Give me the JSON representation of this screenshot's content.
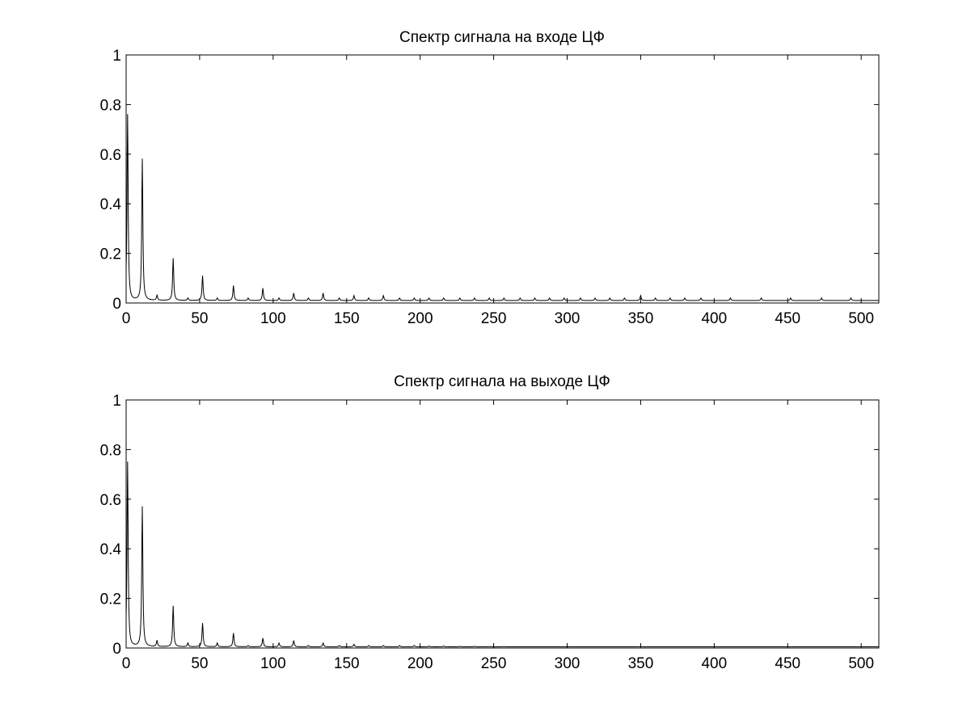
{
  "chart_data": [
    {
      "type": "line",
      "title": "Спектр сигнала на входе ЦФ",
      "xlabel": "",
      "ylabel": "",
      "xlim": [
        0,
        512
      ],
      "ylim": [
        0,
        1
      ],
      "xticks": [
        0,
        50,
        100,
        150,
        200,
        250,
        300,
        350,
        400,
        450,
        500
      ],
      "yticks": [
        0,
        0.2,
        0.4,
        0.6,
        0.8,
        1
      ],
      "ytick_labels": [
        "0",
        "0.2",
        "0.4",
        "0.6",
        "0.8",
        "1"
      ],
      "grid": false,
      "color": "#000000",
      "baseline": 0.01,
      "peaks": [
        {
          "x": 1,
          "y": 0.76
        },
        {
          "x": 11,
          "y": 0.58
        },
        {
          "x": 21,
          "y": 0.03
        },
        {
          "x": 32,
          "y": 0.18
        },
        {
          "x": 42,
          "y": 0.02
        },
        {
          "x": 52,
          "y": 0.11
        },
        {
          "x": 62,
          "y": 0.02
        },
        {
          "x": 73,
          "y": 0.07
        },
        {
          "x": 83,
          "y": 0.02
        },
        {
          "x": 93,
          "y": 0.06
        },
        {
          "x": 104,
          "y": 0.02
        },
        {
          "x": 114,
          "y": 0.04
        },
        {
          "x": 124,
          "y": 0.02
        },
        {
          "x": 134,
          "y": 0.04
        },
        {
          "x": 145,
          "y": 0.02
        },
        {
          "x": 155,
          "y": 0.03
        },
        {
          "x": 165,
          "y": 0.02
        },
        {
          "x": 175,
          "y": 0.03
        },
        {
          "x": 186,
          "y": 0.02
        },
        {
          "x": 196,
          "y": 0.02
        },
        {
          "x": 206,
          "y": 0.02
        },
        {
          "x": 216,
          "y": 0.02
        },
        {
          "x": 227,
          "y": 0.02
        },
        {
          "x": 237,
          "y": 0.02
        },
        {
          "x": 247,
          "y": 0.02
        },
        {
          "x": 257,
          "y": 0.02
        },
        {
          "x": 268,
          "y": 0.02
        },
        {
          "x": 278,
          "y": 0.02
        },
        {
          "x": 288,
          "y": 0.02
        },
        {
          "x": 298,
          "y": 0.02
        },
        {
          "x": 309,
          "y": 0.02
        },
        {
          "x": 319,
          "y": 0.02
        },
        {
          "x": 329,
          "y": 0.02
        },
        {
          "x": 339,
          "y": 0.02
        },
        {
          "x": 350,
          "y": 0.03
        },
        {
          "x": 360,
          "y": 0.02
        },
        {
          "x": 370,
          "y": 0.02
        },
        {
          "x": 380,
          "y": 0.02
        },
        {
          "x": 391,
          "y": 0.02
        },
        {
          "x": 411,
          "y": 0.02
        },
        {
          "x": 432,
          "y": 0.02
        },
        {
          "x": 452,
          "y": 0.02
        },
        {
          "x": 473,
          "y": 0.02
        },
        {
          "x": 493,
          "y": 0.02
        }
      ]
    },
    {
      "type": "line",
      "title": "Спектр сигнала на выходе ЦФ",
      "xlabel": "",
      "ylabel": "",
      "xlim": [
        0,
        512
      ],
      "ylim": [
        0,
        1
      ],
      "xticks": [
        0,
        50,
        100,
        150,
        200,
        250,
        300,
        350,
        400,
        450,
        500
      ],
      "yticks": [
        0,
        0.2,
        0.4,
        0.6,
        0.8,
        1
      ],
      "ytick_labels": [
        "0",
        "0.2",
        "0.4",
        "0.6",
        "0.8",
        "1"
      ],
      "grid": false,
      "color": "#000000",
      "baseline": 0.005,
      "peaks": [
        {
          "x": 1,
          "y": 0.75
        },
        {
          "x": 11,
          "y": 0.57
        },
        {
          "x": 21,
          "y": 0.03
        },
        {
          "x": 32,
          "y": 0.17
        },
        {
          "x": 42,
          "y": 0.02
        },
        {
          "x": 52,
          "y": 0.1
        },
        {
          "x": 62,
          "y": 0.02
        },
        {
          "x": 73,
          "y": 0.06
        },
        {
          "x": 83,
          "y": 0.01
        },
        {
          "x": 93,
          "y": 0.04
        },
        {
          "x": 104,
          "y": 0.02
        },
        {
          "x": 114,
          "y": 0.03
        },
        {
          "x": 124,
          "y": 0.01
        },
        {
          "x": 134,
          "y": 0.02
        },
        {
          "x": 145,
          "y": 0.01
        },
        {
          "x": 155,
          "y": 0.015
        },
        {
          "x": 165,
          "y": 0.01
        },
        {
          "x": 175,
          "y": 0.01
        },
        {
          "x": 186,
          "y": 0.01
        },
        {
          "x": 196,
          "y": 0.01
        },
        {
          "x": 206,
          "y": 0.008
        },
        {
          "x": 216,
          "y": 0.008
        },
        {
          "x": 227,
          "y": 0.007
        },
        {
          "x": 237,
          "y": 0.007
        },
        {
          "x": 247,
          "y": 0.006
        },
        {
          "x": 257,
          "y": 0.006
        },
        {
          "x": 268,
          "y": 0.005
        },
        {
          "x": 278,
          "y": 0.005
        },
        {
          "x": 288,
          "y": 0.005
        },
        {
          "x": 298,
          "y": 0.005
        },
        {
          "x": 309,
          "y": 0.005
        },
        {
          "x": 319,
          "y": 0.005
        },
        {
          "x": 329,
          "y": 0.005
        },
        {
          "x": 339,
          "y": 0.005
        },
        {
          "x": 350,
          "y": 0.006
        },
        {
          "x": 370,
          "y": 0.005
        },
        {
          "x": 391,
          "y": 0.005
        },
        {
          "x": 411,
          "y": 0.005
        },
        {
          "x": 432,
          "y": 0.005
        },
        {
          "x": 452,
          "y": 0.005
        },
        {
          "x": 473,
          "y": 0.005
        },
        {
          "x": 493,
          "y": 0.005
        }
      ]
    }
  ]
}
